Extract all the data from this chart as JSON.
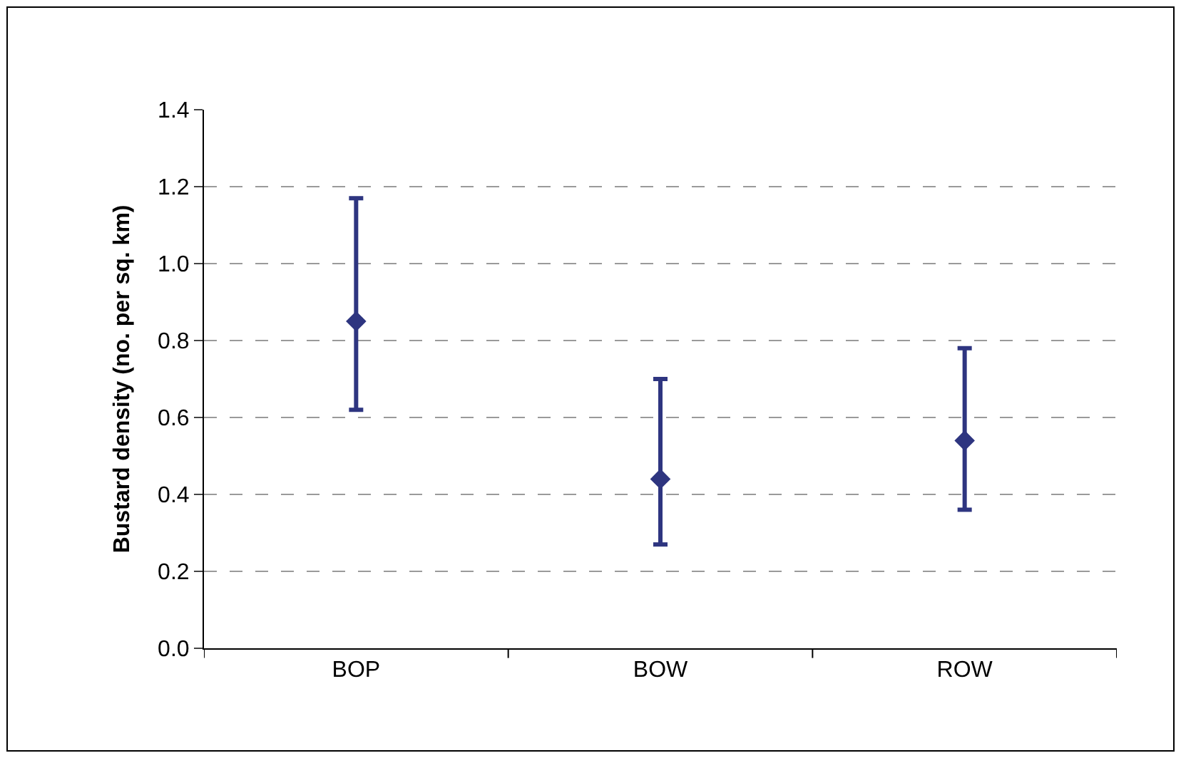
{
  "chart_data": {
    "type": "scatter",
    "ylabel": "Bustard density (no. per sq. km)",
    "categories": [
      "BOP",
      "BOW",
      "ROW"
    ],
    "series": [
      {
        "color": "#2e3580",
        "values": [
          0.85,
          0.44,
          0.54
        ],
        "errors": [
          [
            0.62,
            1.17
          ],
          [
            0.27,
            0.7
          ],
          [
            0.36,
            0.78
          ]
        ]
      }
    ],
    "ylim": [
      0,
      1.4
    ],
    "yticks": [
      {
        "value": 0,
        "label": "0.0"
      },
      {
        "value": 0.2,
        "label": "0.2"
      },
      {
        "value": 0.4,
        "label": "0.4"
      },
      {
        "value": 0.6,
        "label": "0.6"
      },
      {
        "value": 0.8,
        "label": "0.8"
      },
      {
        "value": 1.0,
        "label": "1.0"
      },
      {
        "value": 1.2,
        "label": "1.2"
      },
      {
        "value": 1.4,
        "label": "1.4"
      }
    ],
    "grid": "y",
    "marker": "diamond",
    "legend": false
  }
}
